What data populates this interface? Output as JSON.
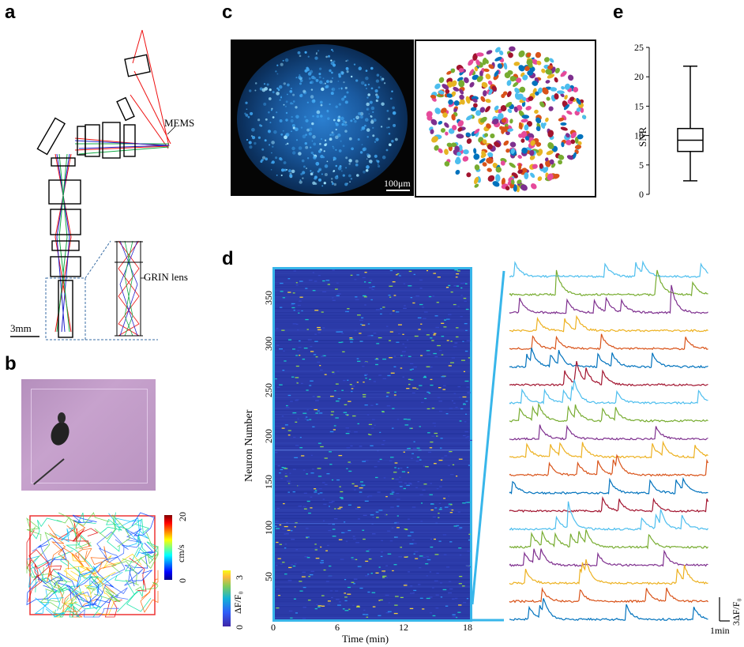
{
  "panels": {
    "a": {
      "letter": "a",
      "mems_label": "MEMS",
      "grin_label": "GRIN lens",
      "scalebar": "3mm"
    },
    "b": {
      "letter": "b",
      "colorbar_label": "cm/s",
      "colorbar_max": "20",
      "colorbar_min": "0"
    },
    "c": {
      "letter": "c",
      "scalebar": "100μm"
    },
    "d": {
      "letter": "d",
      "ylabel": "Neuron Number",
      "xlabel": "Time (min)",
      "xticks": [
        "0",
        "6",
        "12",
        "18"
      ],
      "yticks": [
        "50",
        "100",
        "150",
        "200",
        "250",
        "300",
        "350"
      ],
      "colorbar_label": "ΔF/F₀",
      "colorbar_max": "3",
      "colorbar_min": "0",
      "trace_scale_y": "3ΔF/F₀",
      "trace_scale_x": "1min"
    },
    "e": {
      "letter": "e",
      "ylabel": "SNR",
      "yticks": [
        "0",
        "5",
        "10",
        "15",
        "20",
        "25"
      ]
    }
  },
  "colors": {
    "trace_colors": [
      "#0072bd",
      "#d95319",
      "#edb120",
      "#7e2f8e",
      "#77ac30",
      "#4dbeee",
      "#a2142f"
    ],
    "heatmap_bg": "#2b3aa8",
    "frame_cyan": "#38b6ea"
  },
  "chart_data": [
    {
      "type": "box",
      "panel": "e",
      "title": "",
      "ylabel": "SNR",
      "ylim": [
        0,
        25
      ],
      "whisker_low": 2.3,
      "q1": 7.3,
      "median": 9.2,
      "q3": 11.2,
      "whisker_high": 21.8
    },
    {
      "type": "heatmap",
      "panel": "d",
      "xlabel": "Time (min)",
      "ylabel": "Neuron Number",
      "xlim": [
        0,
        18
      ],
      "ylim": [
        0,
        380
      ],
      "colorbar": {
        "label": "ΔF/F₀",
        "range": [
          0,
          3
        ]
      }
    },
    {
      "type": "line",
      "panel": "d",
      "description_series": 20,
      "scale_y": "3ΔF/F₀",
      "scale_x": "1min"
    }
  ]
}
